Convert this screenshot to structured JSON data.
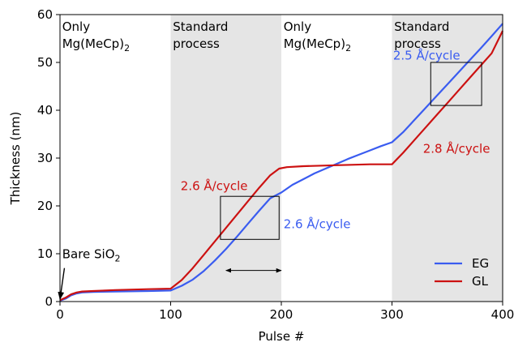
{
  "chart_data": {
    "type": "line",
    "xlabel": "Pulse #",
    "ylabel": "Thickness (nm)",
    "xlim": [
      0,
      400
    ],
    "ylim": [
      0,
      60
    ],
    "xticks": [
      0,
      100,
      200,
      300,
      400
    ],
    "yticks": [
      0,
      10,
      20,
      30,
      40,
      50,
      60
    ],
    "grid": false,
    "legend_position": "bottom-right",
    "shaded_regions": [
      {
        "x": [
          100,
          200
        ],
        "label": [
          "Standard",
          "process"
        ]
      },
      {
        "x": [
          300,
          400
        ],
        "label": [
          "Standard",
          "process"
        ]
      }
    ],
    "region_labels": [
      {
        "lines": [
          "Only",
          "Mg(MeCp)2"
        ],
        "x": 2,
        "y": 59.5
      },
      {
        "lines": [
          "Standard",
          "process"
        ],
        "x": 102,
        "y": 59.5
      },
      {
        "lines": [
          "Only",
          "Mg(MeCp)2"
        ],
        "x": 202,
        "y": 59.5
      },
      {
        "lines": [
          "Standard",
          "process"
        ],
        "x": 302,
        "y": 59.5
      }
    ],
    "series": [
      {
        "name": "EG",
        "color": "#3a5cf0",
        "x": [
          0,
          5,
          10,
          15,
          20,
          30,
          50,
          80,
          100,
          110,
          120,
          130,
          140,
          150,
          160,
          170,
          180,
          190,
          200,
          210,
          220,
          230,
          240,
          250,
          260,
          270,
          280,
          290,
          300,
          310,
          320,
          330,
          340,
          350,
          360,
          370,
          380,
          390,
          400
        ],
        "values": [
          0.2,
          0.6,
          1.3,
          1.7,
          1.9,
          2.0,
          2.1,
          2.2,
          2.3,
          3.3,
          4.6,
          6.4,
          8.6,
          11.0,
          13.6,
          16.3,
          19.0,
          21.6,
          22.8,
          24.4,
          25.6,
          26.8,
          27.8,
          28.8,
          29.8,
          30.7,
          31.6,
          32.5,
          33.3,
          35.4,
          37.9,
          40.4,
          42.9,
          45.4,
          47.9,
          50.4,
          52.9,
          55.5,
          58.1
        ]
      },
      {
        "name": "GL",
        "color": "#cc1111",
        "x": [
          0,
          5,
          10,
          15,
          20,
          30,
          50,
          80,
          100,
          110,
          120,
          130,
          140,
          150,
          160,
          170,
          180,
          190,
          198,
          205,
          220,
          250,
          280,
          300,
          310,
          320,
          330,
          340,
          350,
          360,
          370,
          380,
          390,
          400
        ],
        "values": [
          0.3,
          0.8,
          1.5,
          1.9,
          2.1,
          2.2,
          2.4,
          2.6,
          2.7,
          4.5,
          7.0,
          9.8,
          12.6,
          15.4,
          18.2,
          21.0,
          23.8,
          26.4,
          27.8,
          28.1,
          28.3,
          28.5,
          28.7,
          28.7,
          31.1,
          33.7,
          36.3,
          38.9,
          41.5,
          44.1,
          46.7,
          49.3,
          51.9,
          56.6
        ]
      }
    ],
    "annotations": [
      {
        "text": "2.6 Å/cycle",
        "color": "#cc1111",
        "x": 109,
        "y": 23.3
      },
      {
        "text": "2.6 Å/cycle",
        "color": "#3a5cf0",
        "x": 202,
        "y": 15.3
      },
      {
        "text": "2.5 Å/cycle",
        "color": "#3a5cf0",
        "x": 301,
        "y": 50.6
      },
      {
        "text": "2.8 Å/cycle",
        "color": "#cc1111",
        "x": 328,
        "y": 31.1
      },
      {
        "text": "Bare SiO2",
        "color": "#000000",
        "x": 2,
        "y": 9.1
      }
    ],
    "slope_boxes": [
      {
        "x": [
          145,
          198
        ],
        "y": [
          13,
          22
        ]
      },
      {
        "x": [
          335,
          381
        ],
        "y": [
          41,
          50
        ]
      }
    ],
    "span_arrow": {
      "x": [
        150,
        200
      ],
      "y": 6.5
    },
    "bare_arrow": {
      "from": [
        4,
        7
      ],
      "to": [
        0,
        0.5
      ]
    }
  }
}
